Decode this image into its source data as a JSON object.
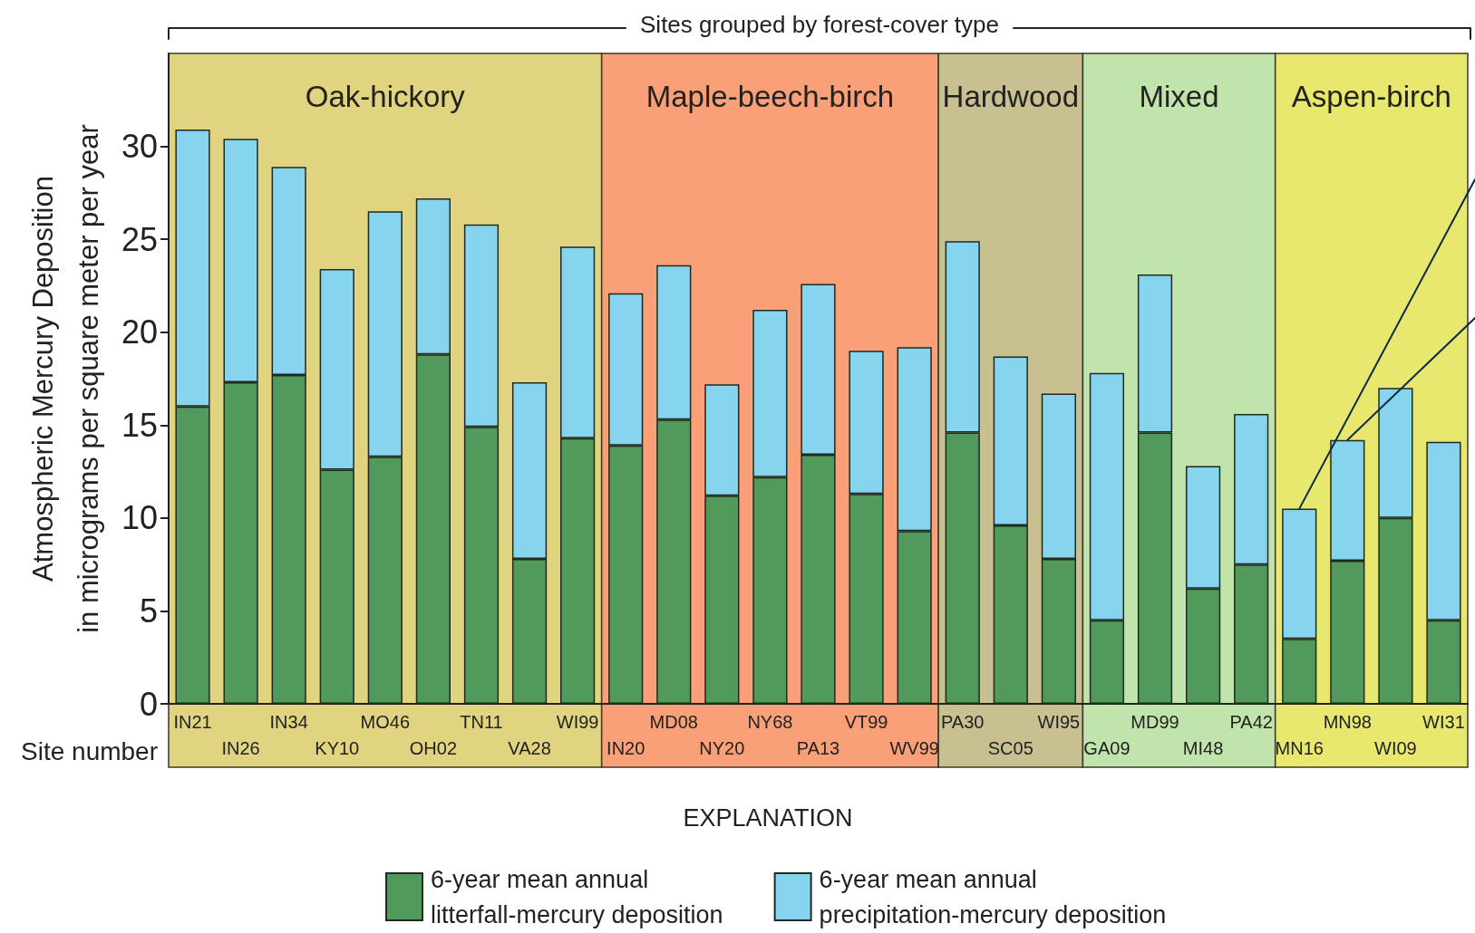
{
  "chart_data": {
    "type": "bar",
    "title": "Sites grouped by forest-cover type",
    "xlabel": "Site number",
    "ylabel": "Atmospheric Mercury Deposition\nin micrograms per square meter per year",
    "legend_title": "EXPLANATION",
    "categories": [
      "IN21",
      "IN26",
      "IN34",
      "KY10",
      "MO46",
      "OH02",
      "TN11",
      "VA28",
      "WI99",
      "IN20",
      "MD08",
      "NY20",
      "NY68",
      "PA13",
      "VT99",
      "WV99",
      "PA30",
      "SC05",
      "WI95",
      "GA09",
      "MD99",
      "MI48",
      "PA42",
      "MN16",
      "MN98",
      "WI09",
      "WI31"
    ],
    "series": [
      {
        "name": "6-year mean annual\nlitterfall-mercury deposition",
        "color": "#519a5b",
        "values": [
          16.0,
          17.3,
          17.7,
          12.6,
          13.3,
          18.8,
          14.9,
          7.8,
          14.3,
          13.9,
          15.3,
          11.2,
          12.2,
          13.4,
          11.3,
          9.3,
          14.6,
          9.6,
          7.8,
          4.5,
          14.6,
          6.2,
          7.5,
          3.5,
          7.7,
          10.0,
          4.5
        ]
      },
      {
        "name": "6-year mean annual\nprecipitation-mercury deposition",
        "color": "#86d4ee",
        "values": [
          14.9,
          13.1,
          11.2,
          10.8,
          13.2,
          8.4,
          10.9,
          9.5,
          10.3,
          8.2,
          8.3,
          6.0,
          9.0,
          9.2,
          7.7,
          9.9,
          10.3,
          9.1,
          8.9,
          13.3,
          8.5,
          6.6,
          8.1,
          7.0,
          6.5,
          7.0,
          9.6
        ]
      }
    ],
    "stacked": true,
    "ylim": [
      0,
      35
    ],
    "yticks": [
      0,
      5,
      10,
      15,
      20,
      25,
      30
    ],
    "bands": [
      {
        "axis": "x",
        "from": "IN21",
        "to": "WI99",
        "label": "Oak-hickory",
        "color": "#e0d480"
      },
      {
        "axis": "x",
        "from": "IN20",
        "to": "WV99",
        "label": "Maple-beech-birch",
        "color": "#faa078"
      },
      {
        "axis": "x",
        "from": "PA30",
        "to": "WI95",
        "label": "Hardwood",
        "color": "#c8c091"
      },
      {
        "axis": "x",
        "from": "GA09",
        "to": "PA42",
        "label": "Mixed",
        "color": "#c0e4ac"
      },
      {
        "axis": "x",
        "from": "MN16",
        "to": "WI31",
        "label": "Aspen-birch",
        "color": "#e8e86e"
      }
    ],
    "legend": "bottom"
  }
}
